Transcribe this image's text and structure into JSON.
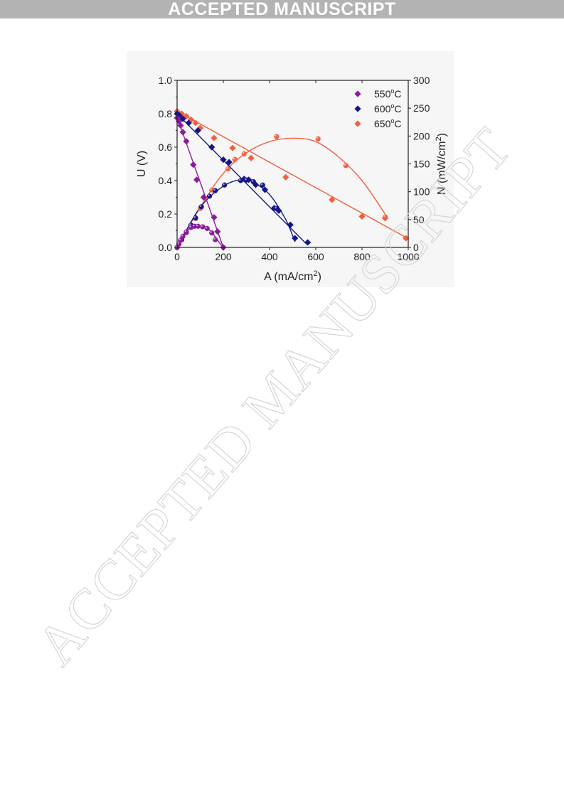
{
  "banner": {
    "text": "ACCEPTED MANUSCRIPT"
  },
  "watermark": {
    "text": "ACCEPTED MANUSCRIPT"
  },
  "colors": {
    "banner_bg": "#b3b3b3",
    "series_550": "#8b1a9c",
    "series_600": "#15158a",
    "series_650": "#f06040",
    "watermark_stroke": "#d2d2d2"
  },
  "chart_data": {
    "type": "scatter",
    "xlabel": {
      "main": "A (mA/cm",
      "sup": "2",
      "end": ")"
    },
    "ylabel": "U (V)",
    "y2label": {
      "main": "N (mW/cm",
      "sup": "2",
      "end": ")"
    },
    "xlim": [
      0,
      1000
    ],
    "ylim": [
      0,
      1.0
    ],
    "y2lim": [
      0,
      300
    ],
    "xticks": [
      "0",
      "200",
      "400",
      "600",
      "800",
      "1000"
    ],
    "yticks": [
      "0.0",
      "0.2",
      "0.4",
      "0.6",
      "0.8",
      "1.0"
    ],
    "y2ticks": [
      "0",
      "50",
      "100",
      "150",
      "200",
      "250",
      "300"
    ],
    "xtick_values": [
      0,
      200,
      400,
      600,
      800,
      1000
    ],
    "ytick_values": [
      0,
      0.2,
      0.4,
      0.6,
      0.8,
      1.0
    ],
    "y2tick_values": [
      0,
      50,
      100,
      150,
      200,
      250,
      300
    ],
    "legend_position": "top-right",
    "grid": false,
    "series": [
      {
        "name": "550°C",
        "legend_main": "550",
        "legend_sup": "o",
        "legend_end": "C",
        "color": "#8b1a9c",
        "voltage": {
          "x": [
            0,
            8,
            15,
            25,
            40,
            70,
            85,
            115,
            160,
            175,
            200
          ],
          "y": [
            0.775,
            0.755,
            0.73,
            0.69,
            0.635,
            0.495,
            0.405,
            0.3,
            0.18,
            0.095,
            0.0
          ]
        },
        "voltage_fit": [
          [
            0,
            0.78
          ],
          [
            200,
            0.0
          ]
        ],
        "power": {
          "x": [
            0,
            8,
            15,
            25,
            40,
            60,
            75,
            90,
            110,
            130,
            150,
            165
          ],
          "y": [
            0,
            6,
            13,
            20,
            28,
            36,
            38,
            38,
            37,
            34,
            26,
            14
          ]
        },
        "power_fit": [
          [
            0,
            0
          ],
          [
            40,
            28
          ],
          [
            70,
            37
          ],
          [
            95,
            39
          ],
          [
            120,
            37
          ],
          [
            150,
            27
          ],
          [
            175,
            13
          ],
          [
            195,
            2
          ]
        ]
      },
      {
        "name": "600°C",
        "legend_main": "600",
        "legend_sup": "o",
        "legend_end": "C",
        "color": "#15158a",
        "voltage": {
          "x": [
            0,
            10,
            25,
            50,
            90,
            150,
            200,
            225,
            290,
            310,
            340,
            380,
            420,
            440,
            490,
            510,
            565
          ],
          "y": [
            0.8,
            0.79,
            0.77,
            0.745,
            0.7,
            0.6,
            0.525,
            0.51,
            0.41,
            0.405,
            0.375,
            0.345,
            0.235,
            0.22,
            0.135,
            0.055,
            0.03
          ]
        },
        "voltage_fit": [
          [
            0,
            0.8
          ],
          [
            560,
            0.02
          ]
        ],
        "power": {
          "x": [
            0,
            20,
            40,
            60,
            80,
            105,
            140,
            165,
            205,
            275,
            300,
            330,
            370,
            430
          ],
          "y": [
            0,
            14,
            27,
            40,
            53,
            73,
            92,
            102,
            112,
            120,
            121,
            118,
            112,
            70
          ]
        },
        "power_fit": [
          [
            0,
            0
          ],
          [
            100,
            72
          ],
          [
            200,
            110
          ],
          [
            280,
            122
          ],
          [
            330,
            117
          ],
          [
            400,
            95
          ],
          [
            470,
            50
          ],
          [
            510,
            10
          ]
        ]
      },
      {
        "name": "650°C",
        "legend_main": "650",
        "legend_sup": "o",
        "legend_end": "C",
        "color": "#f06040",
        "voltage": {
          "x": [
            0,
            20,
            40,
            60,
            80,
            100,
            160,
            240,
            320,
            470,
            670,
            800,
            900,
            990
          ],
          "y": [
            0.815,
            0.8,
            0.785,
            0.765,
            0.745,
            0.715,
            0.655,
            0.595,
            0.535,
            0.42,
            0.285,
            0.185,
            0.175,
            0.055
          ]
        },
        "voltage_fit": [
          [
            0,
            0.815
          ],
          [
            990,
            0.06
          ]
        ],
        "power": {
          "x": [
            0,
            20,
            40,
            60,
            80,
            100,
            150,
            220,
            250,
            290,
            430,
            610,
            730,
            900
          ],
          "y": [
            0,
            14,
            27,
            40,
            52,
            70,
            103,
            141,
            158,
            168,
            199,
            195,
            147,
            55
          ]
        },
        "power_fit": [
          [
            0,
            0
          ],
          [
            100,
            72
          ],
          [
            200,
            133
          ],
          [
            300,
            170
          ],
          [
            400,
            190
          ],
          [
            500,
            196
          ],
          [
            600,
            190
          ],
          [
            700,
            162
          ],
          [
            800,
            120
          ],
          [
            900,
            60
          ]
        ]
      }
    ]
  }
}
